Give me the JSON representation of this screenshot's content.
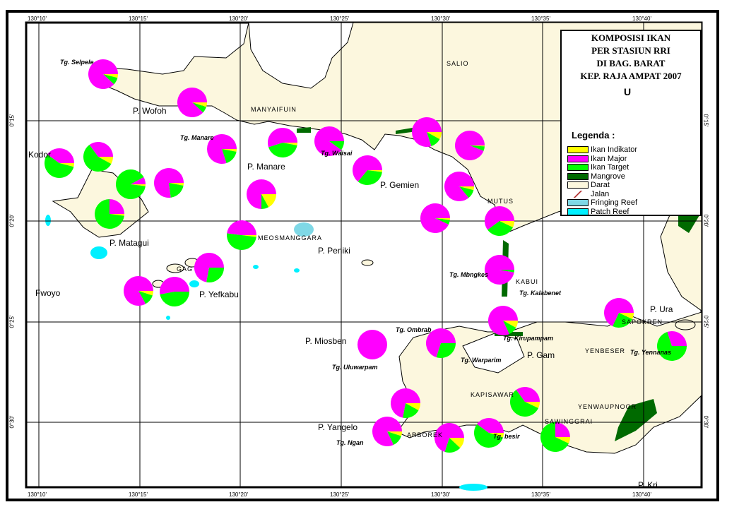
{
  "map": {
    "title_lines": [
      "KOMPOSISI IKAN",
      "PER STASIUN RRI",
      "DI BAG. BARAT",
      "KEP. RAJA AMPAT 2007"
    ],
    "north_label": "U",
    "legend_title": "Legenda  :",
    "legend": [
      {
        "label": "Ikan Indikator",
        "color": "#ffff00"
      },
      {
        "label": "Ikan Major",
        "color": "#ff00ff"
      },
      {
        "label": "Ikan Target",
        "color": "#00ff00"
      },
      {
        "label": "Mangrove",
        "color": "#006a00"
      },
      {
        "label": "Darat",
        "color": "#fcf7de"
      },
      {
        "label": "Jalan",
        "color": "#a00000"
      },
      {
        "label": "Fringing Reef",
        "color": "#7fd8e6"
      },
      {
        "label": "Patch Reef",
        "color": "#00f0ff"
      }
    ],
    "longitude_ticks": [
      "130°10'",
      "130°15'",
      "130°20'",
      "130°25'",
      "130°30'",
      "130°35'",
      "130°40'"
    ],
    "latitude_ticks": [
      "0°15'",
      "0°20'",
      "0°25'",
      "0°30'"
    ],
    "places": [
      "P. Wofoh",
      "P. Manare",
      "P. Gemien",
      "P. Matagui",
      "P. Peniki",
      "P. Yefkabu",
      "P. Miosben",
      "P. Yangelo",
      "P. Gam",
      "P. Ura",
      "P. Kri",
      "Fwoyo",
      "Kodor"
    ],
    "villages": [
      "SALIO",
      "MANYAIFUIN",
      "MUTUS",
      "MEOSMANGGARA",
      "GAG",
      "KABUI",
      "SAPOKREN",
      "YENBESER",
      "KAPISAWAR",
      "ARBOREK",
      "SAWINGGRAI",
      "YENWAUPNOOR"
    ],
    "capes": [
      "Tg. Selpele",
      "Tg. Manare",
      "Tg. Waisai",
      "Tg. Mbngkes",
      "Tg. Kalabenet",
      "Tg. Kirupampam",
      "Tg. Ombrab",
      "Tg. Warparim",
      "Tg. Uluwarpam",
      "Tg. Ngan",
      "Tg. besir",
      "Tg. Yennanas"
    ],
    "colors": {
      "indikator": "#ffff00",
      "major": "#ff00ff",
      "target": "#00ff00",
      "land": "#fcf7de",
      "mangrove": "#006a00",
      "reef": "#00f0ff"
    }
  },
  "chart_data": {
    "type": "pie-map",
    "series_order": [
      "Ikan Indikator",
      "Ikan Target",
      "Ikan Major"
    ],
    "stations": [
      {
        "indikator": 0.04,
        "major": 0.88,
        "target": 0.08
      },
      {
        "indikator": 0.05,
        "major": 0.88,
        "target": 0.07
      },
      {
        "indikator": 0.03,
        "major": 0.8,
        "target": 0.17
      },
      {
        "indikator": 0.03,
        "major": 0.55,
        "target": 0.42
      },
      {
        "indikator": 0.0,
        "major": 0.9,
        "target": 0.1
      },
      {
        "indikator": 0.02,
        "major": 0.64,
        "target": 0.34
      },
      {
        "indikator": 0.08,
        "major": 0.8,
        "target": 0.12
      },
      {
        "indikator": 0.01,
        "major": 0.94,
        "target": 0.05
      },
      {
        "indikator": 0.04,
        "major": 0.86,
        "target": 0.1
      },
      {
        "indikator": 0.02,
        "major": 0.93,
        "target": 0.05
      },
      {
        "indikator": 0.07,
        "major": 0.6,
        "target": 0.33
      },
      {
        "indikator": 0.04,
        "major": 0.4,
        "target": 0.56
      },
      {
        "indikator": 0.08,
        "major": 0.35,
        "target": 0.57
      },
      {
        "indikator": 0.02,
        "major": 0.08,
        "target": 0.9
      },
      {
        "indikator": 0.03,
        "major": 0.77,
        "target": 0.2
      },
      {
        "indikator": 0.02,
        "major": 0.25,
        "target": 0.73
      },
      {
        "indikator": 0.17,
        "major": 0.75,
        "target": 0.08
      },
      {
        "indikator": 0.02,
        "major": 0.48,
        "target": 0.5
      },
      {
        "indikator": 0.0,
        "major": 0.72,
        "target": 0.28
      },
      {
        "indikator": 0.05,
        "major": 0.83,
        "target": 0.12
      },
      {
        "indikator": 0.0,
        "major": 0.53,
        "target": 0.47
      },
      {
        "indikator": 0.0,
        "major": 0.97,
        "target": 0.03
      },
      {
        "indikator": 0.08,
        "major": 0.82,
        "target": 0.1
      },
      {
        "indikator": 0.07,
        "major": 0.68,
        "target": 0.25
      },
      {
        "indikator": 0.0,
        "major": 0.3,
        "target": 0.7
      },
      {
        "indikator": 0.0,
        "major": 1.0,
        "target": 0.0
      },
      {
        "indikator": 0.0,
        "major": 0.7,
        "target": 0.3
      },
      {
        "indikator": 0.08,
        "major": 0.72,
        "target": 0.2
      },
      {
        "indikator": 0.05,
        "major": 0.82,
        "target": 0.13
      },
      {
        "indikator": 0.12,
        "major": 0.7,
        "target": 0.18
      },
      {
        "indikator": 0.05,
        "major": 0.4,
        "target": 0.55
      },
      {
        "indikator": 0.07,
        "major": 0.35,
        "target": 0.58
      },
      {
        "indikator": 0.07,
        "major": 0.25,
        "target": 0.68
      }
    ]
  }
}
